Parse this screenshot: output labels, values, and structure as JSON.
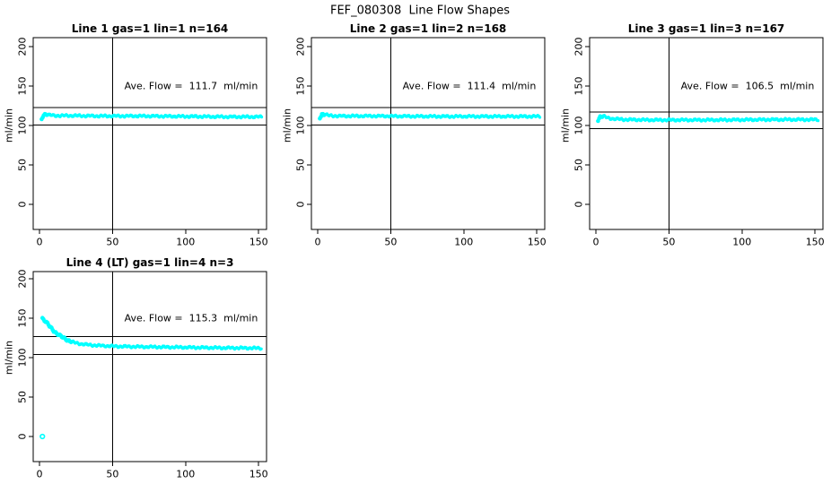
{
  "figure_title": "FEF_080308  Line Flow Shapes",
  "axes": {
    "x_ticks": [
      "0",
      "50",
      "100",
      "150"
    ],
    "x_tick_values": [
      0,
      50,
      100,
      150
    ],
    "y_ticks": [
      "0",
      "50",
      "100",
      "150",
      "200"
    ],
    "y_tick_values": [
      0,
      50,
      100,
      150,
      200
    ],
    "y_label": "ml/min"
  },
  "colors": {
    "series": "#00ffff",
    "axis": "#000000",
    "background": "#ffffff"
  },
  "chart_data": {
    "type": "scatter",
    "title": "FEF_080308  Line Flow Shapes",
    "xlabel": "",
    "ylabel": "ml/min",
    "x_range": [
      0,
      150
    ],
    "y_range": [
      0,
      200
    ],
    "grid": false,
    "legend": false,
    "panels": [
      {
        "title": "Line 1 gas=1 lin=1 n=164",
        "ave_flow_label": "Ave. Flow =  111.7  ml/min",
        "ave_flow": 111.7,
        "n": 164,
        "upper_line": 122.9,
        "lower_line": 100.5,
        "vline_x": 50,
        "centerline": [
          [
            1.5,
            108
          ],
          [
            2.5,
            113
          ],
          [
            4,
            114.5
          ],
          [
            6,
            113.5
          ],
          [
            10,
            112.5
          ],
          [
            20,
            112.5
          ],
          [
            40,
            112
          ],
          [
            70,
            112
          ],
          [
            100,
            111.5
          ],
          [
            130,
            111
          ],
          [
            152,
            111
          ]
        ]
      },
      {
        "title": "Line 2 gas=1 lin=2 n=168",
        "ave_flow_label": "Ave. Flow =  111.4  ml/min",
        "ave_flow": 111.4,
        "n": 168,
        "upper_line": 122.5,
        "lower_line": 100.3,
        "vline_x": 50,
        "centerline": [
          [
            1.5,
            110
          ],
          [
            3,
            114.5
          ],
          [
            5,
            114
          ],
          [
            8,
            112.5
          ],
          [
            15,
            112
          ],
          [
            40,
            112
          ],
          [
            80,
            111.5
          ],
          [
            120,
            111.5
          ],
          [
            152,
            111.5
          ]
        ]
      },
      {
        "title": "Line 3 gas=1 lin=3 n=167",
        "ave_flow_label": "Ave. Flow =  106.5  ml/min",
        "ave_flow": 106.5,
        "n": 167,
        "upper_line": 117.2,
        "lower_line": 95.9,
        "vline_x": 50,
        "centerline": [
          [
            1.5,
            107
          ],
          [
            3,
            111.5
          ],
          [
            5,
            112
          ],
          [
            8,
            109.5
          ],
          [
            12,
            108.5
          ],
          [
            20,
            107.5
          ],
          [
            40,
            107
          ],
          [
            80,
            107
          ],
          [
            120,
            107.5
          ],
          [
            152,
            107.5
          ]
        ]
      },
      {
        "title": "Line 4 (LT) gas=1 lin=4 n=3",
        "ave_flow_label": "Ave. Flow =  115.3  ml/min",
        "ave_flow": 115.3,
        "n": 3,
        "upper_line": 126.8,
        "lower_line": 103.8,
        "vline_x": 50,
        "centerline": [
          [
            2,
            150
          ],
          [
            3.5,
            147
          ],
          [
            5,
            144
          ],
          [
            7,
            139.5
          ],
          [
            9,
            135.5
          ],
          [
            11,
            132
          ],
          [
            13,
            129
          ],
          [
            15,
            126.5
          ],
          [
            17,
            124.5
          ],
          [
            19,
            122.5
          ],
          [
            21,
            121
          ],
          [
            24,
            119
          ],
          [
            27,
            117.8
          ],
          [
            30,
            117
          ],
          [
            35,
            116
          ],
          [
            40,
            115.3
          ],
          [
            50,
            114.5
          ],
          [
            60,
            114
          ],
          [
            80,
            113.5
          ],
          [
            100,
            113
          ],
          [
            120,
            112.5
          ],
          [
            152,
            112
          ]
        ],
        "outlier_point": [
          2,
          0
        ]
      }
    ]
  }
}
